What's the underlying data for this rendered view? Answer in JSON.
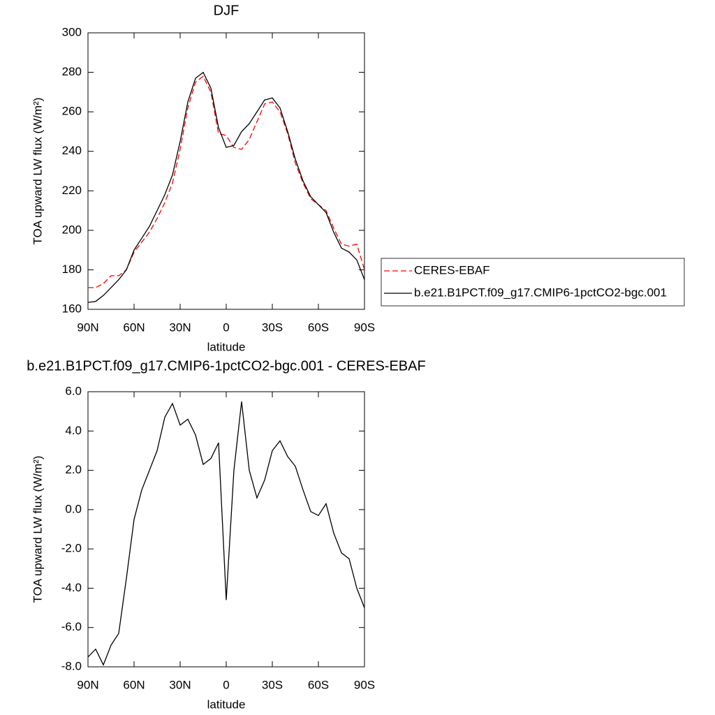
{
  "chart_data": [
    {
      "type": "line",
      "title": "DJF",
      "xlabel": "latitude",
      "ylabel": "TOA upward LW flux (W/m²)",
      "x": [
        90,
        85,
        80,
        75,
        70,
        65,
        60,
        55,
        50,
        45,
        40,
        35,
        30,
        25,
        20,
        15,
        10,
        5,
        0,
        -5,
        -10,
        -15,
        -20,
        -25,
        -30,
        -35,
        -40,
        -45,
        -50,
        -55,
        -60,
        -65,
        -70,
        -75,
        -80,
        -85,
        -90
      ],
      "series": [
        {
          "name": "CERES-EBAF",
          "color": "#ff0000",
          "line_style": "dashed",
          "values": [
            171,
            171,
            173,
            177,
            177,
            180,
            189,
            194,
            199,
            206,
            214,
            224,
            241,
            262,
            275,
            278,
            270,
            249,
            248,
            242,
            241,
            246,
            255,
            264,
            265,
            260,
            249,
            234,
            224,
            216,
            213,
            210,
            201,
            193,
            192,
            193,
            180
          ]
        },
        {
          "name": "b.e21.B1PCT.f09_g17.CMIP6-1pctCO2-bgc.001",
          "color": "#000000",
          "line_style": "solid",
          "values": [
            163.5,
            164,
            167,
            171,
            175,
            180,
            190,
            196,
            202,
            210,
            218,
            228,
            245,
            265,
            277,
            280,
            272,
            252,
            242,
            243,
            250,
            254,
            260,
            266,
            267,
            262,
            250,
            236,
            225,
            217,
            213,
            209,
            199,
            191,
            189,
            185,
            175
          ]
        }
      ],
      "xlim": [
        90,
        -90
      ],
      "xticks": [
        {
          "value": 90,
          "label": "90N"
        },
        {
          "value": 60,
          "label": "60N"
        },
        {
          "value": 30,
          "label": "30N"
        },
        0,
        {
          "value": -30,
          "label": "30S"
        },
        {
          "value": -60,
          "label": "60S"
        },
        {
          "value": -90,
          "label": "90S"
        }
      ],
      "ylim": [
        160,
        300
      ],
      "yticks": [
        160,
        180,
        200,
        220,
        240,
        260,
        280,
        300
      ],
      "legend": "right"
    },
    {
      "type": "line",
      "title": "b.e21.B1PCT.f09_g17.CMIP6-1pctCO2-bgc.001 - CERES-EBAF",
      "xlabel": "latitude",
      "ylabel": "TOA upward LW flux (W/m²)",
      "x": [
        90,
        85,
        80,
        75,
        70,
        65,
        60,
        55,
        50,
        45,
        40,
        35,
        30,
        25,
        20,
        15,
        10,
        5,
        0,
        -5,
        -10,
        -15,
        -20,
        -25,
        -30,
        -35,
        -40,
        -45,
        -50,
        -55,
        -60,
        -65,
        -70,
        -75,
        -80,
        -85,
        -90
      ],
      "values": [
        -7.5,
        -7.1,
        -7.9,
        -6.9,
        -6.3,
        -3.5,
        -0.5,
        1.0,
        2.0,
        3.0,
        4.7,
        5.4,
        4.3,
        4.6,
        3.8,
        2.3,
        2.6,
        3.4,
        -4.6,
        2.0,
        5.5,
        2.0,
        0.6,
        1.5,
        3.0,
        3.5,
        2.7,
        2.2,
        1.0,
        -0.1,
        -0.3,
        0.3,
        -1.2,
        -2.2,
        -2.5,
        -4.0,
        -5.0
      ],
      "color": "#000000",
      "xlim": [
        90,
        -90
      ],
      "xticks": [
        {
          "value": 90,
          "label": "90N"
        },
        {
          "value": 60,
          "label": "60N"
        },
        {
          "value": 30,
          "label": "30N"
        },
        0,
        {
          "value": -30,
          "label": "30S"
        },
        {
          "value": -60,
          "label": "60S"
        },
        {
          "value": -90,
          "label": "90S"
        }
      ],
      "ylim": [
        -8,
        6
      ],
      "yticks": [
        {
          "value": -8,
          "label": "-8.0"
        },
        {
          "value": -6,
          "label": "-6.0"
        },
        {
          "value": -4,
          "label": "-4.0"
        },
        {
          "value": -2,
          "label": "-2.0"
        },
        {
          "value": 0,
          "label": "0.0"
        },
        {
          "value": 2,
          "label": "2.0"
        },
        {
          "value": 4,
          "label": "4.0"
        },
        {
          "value": 6,
          "label": "6.0"
        }
      ]
    }
  ]
}
